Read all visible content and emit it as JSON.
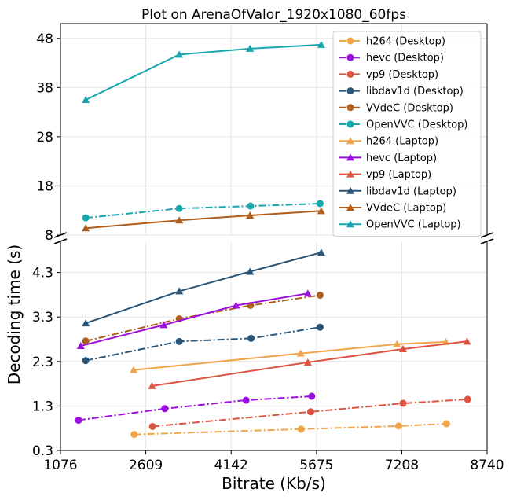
{
  "chart_data": {
    "type": "line",
    "title": "Plot on ArenaOfValor_1920x1080_60fps",
    "xlabel": "Bitrate (Kb/s)",
    "ylabel": "Decoding time (s)",
    "broken_y_axis": true,
    "grid": true,
    "legend_position": "top-right",
    "x_ticks": [
      1076,
      2609,
      4142,
      5675,
      7208,
      8740
    ],
    "xlim": [
      1076,
      8740
    ],
    "upper_panel": {
      "ylim": [
        8,
        51
      ],
      "y_ticks": [
        8,
        18,
        28,
        38,
        48
      ]
    },
    "lower_panel": {
      "ylim": [
        0.3,
        5.0
      ],
      "y_ticks": [
        0.3,
        1.3,
        2.3,
        3.3,
        4.3
      ]
    },
    "series": [
      {
        "name": "h264 (Desktop)",
        "color": "#f0a54b",
        "marker": "circle",
        "linestyle": "dashdot",
        "panel": "lower",
        "x": [
          2400,
          5400,
          7150,
          8010
        ],
        "y": [
          0.66,
          0.78,
          0.85,
          0.9
        ]
      },
      {
        "name": "hevc (Desktop)",
        "color": "#9b0fde",
        "marker": "circle",
        "linestyle": "dashdot",
        "panel": "lower",
        "x": [
          1400,
          2950,
          4410,
          5590
        ],
        "y": [
          0.98,
          1.24,
          1.43,
          1.52
        ]
      },
      {
        "name": "vp9 (Desktop)",
        "color": "#dd5340",
        "marker": "circle",
        "linestyle": "dashdot",
        "panel": "lower",
        "x": [
          2730,
          5570,
          7230,
          8390
        ],
        "y": [
          0.84,
          1.17,
          1.36,
          1.45
        ]
      },
      {
        "name": "libdav1d (Desktop)",
        "color": "#2a5577",
        "marker": "circle",
        "linestyle": "dashdot",
        "panel": "lower",
        "x": [
          1530,
          3210,
          4500,
          5740
        ],
        "y": [
          2.32,
          2.75,
          2.82,
          3.07
        ]
      },
      {
        "name": "VVdeC (Desktop)",
        "color": "#b05e1d",
        "marker": "circle",
        "linestyle": "dashdot",
        "panel": "lower",
        "x": [
          1530,
          3210,
          4490,
          5740
        ],
        "y": [
          2.76,
          3.26,
          3.56,
          3.79
        ]
      },
      {
        "name": "OpenVVC (Desktop)",
        "color": "#18a6ae",
        "marker": "circle",
        "linestyle": "dashdot",
        "panel": "upper",
        "x": [
          1530,
          3210,
          4490,
          5740
        ],
        "y": [
          11.5,
          13.4,
          13.9,
          14.4
        ]
      },
      {
        "name": "h264 (Laptop)",
        "color": "#f0a54b",
        "marker": "triangle",
        "linestyle": "solid",
        "panel": "lower",
        "x": [
          2390,
          5390,
          7120,
          8000
        ],
        "y": [
          2.11,
          2.48,
          2.69,
          2.74
        ]
      },
      {
        "name": "hevc (Laptop)",
        "color": "#9b0fde",
        "marker": "triangle",
        "linestyle": "solid",
        "panel": "lower",
        "x": [
          1440,
          2930,
          4230,
          5520
        ],
        "y": [
          2.65,
          3.12,
          3.56,
          3.83
        ]
      },
      {
        "name": "vp9 (Laptop)",
        "color": "#dd5340",
        "marker": "triangle",
        "linestyle": "solid",
        "panel": "lower",
        "x": [
          2720,
          5520,
          7230,
          8380
        ],
        "y": [
          1.75,
          2.28,
          2.58,
          2.75
        ]
      },
      {
        "name": "libdav1d (Laptop)",
        "color": "#2a5577",
        "marker": "triangle",
        "linestyle": "solid",
        "panel": "lower",
        "x": [
          1530,
          3210,
          4480,
          5760
        ],
        "y": [
          3.16,
          3.88,
          4.32,
          4.75
        ]
      },
      {
        "name": "VVdeC (Laptop)",
        "color": "#b05e1d",
        "marker": "triangle",
        "linestyle": "solid",
        "panel": "upper",
        "x": [
          1530,
          3210,
          4480,
          5760
        ],
        "y": [
          9.4,
          11.0,
          12.0,
          12.9
        ]
      },
      {
        "name": "OpenVVC (Laptop)",
        "color": "#18a6ae",
        "marker": "triangle",
        "linestyle": "solid",
        "panel": "upper",
        "x": [
          1530,
          3210,
          4480,
          5760
        ],
        "y": [
          35.5,
          44.7,
          45.9,
          46.7
        ]
      }
    ]
  }
}
